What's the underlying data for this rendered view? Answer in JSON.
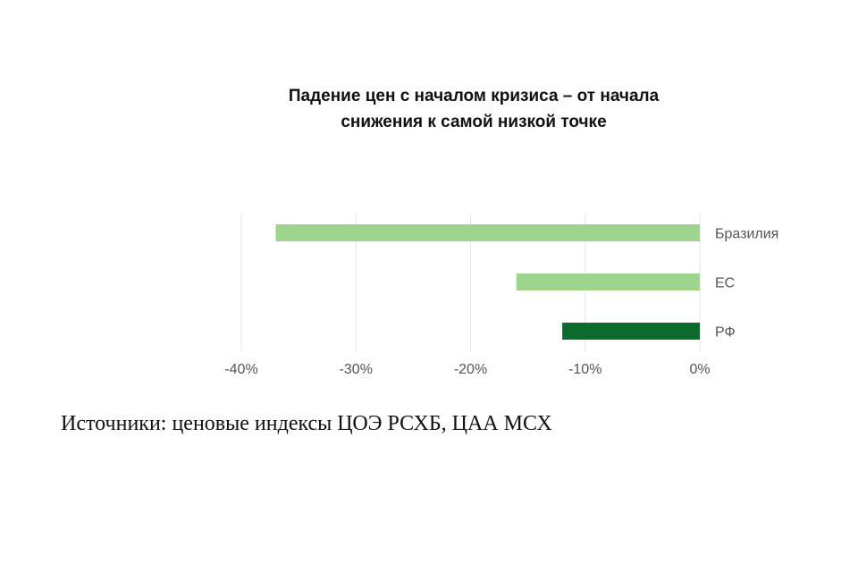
{
  "chart_data": {
    "type": "bar",
    "orientation": "horizontal",
    "title_lines": [
      "Падение цен с началом кризиса – от начала",
      "снижения к самой низкой точке"
    ],
    "categories": [
      "Бразилия",
      "ЕС",
      "РФ"
    ],
    "values": [
      -37,
      -16,
      -12
    ],
    "bar_colors": [
      "#9dd48e",
      "#9dd48e",
      "#0c6b2c"
    ],
    "x_unit": "%",
    "xlim": [
      -40,
      0
    ],
    "x_ticks": [
      -40,
      -30,
      -20,
      -10,
      0
    ],
    "x_tick_labels": [
      "-40%",
      "-30%",
      "-20%",
      "-10%",
      "0%"
    ],
    "grid": "vertical",
    "category_labels_position": "right"
  },
  "source_text": "Источники: ценовые индексы ЦОЭ РСХБ, ЦАА МСХ"
}
